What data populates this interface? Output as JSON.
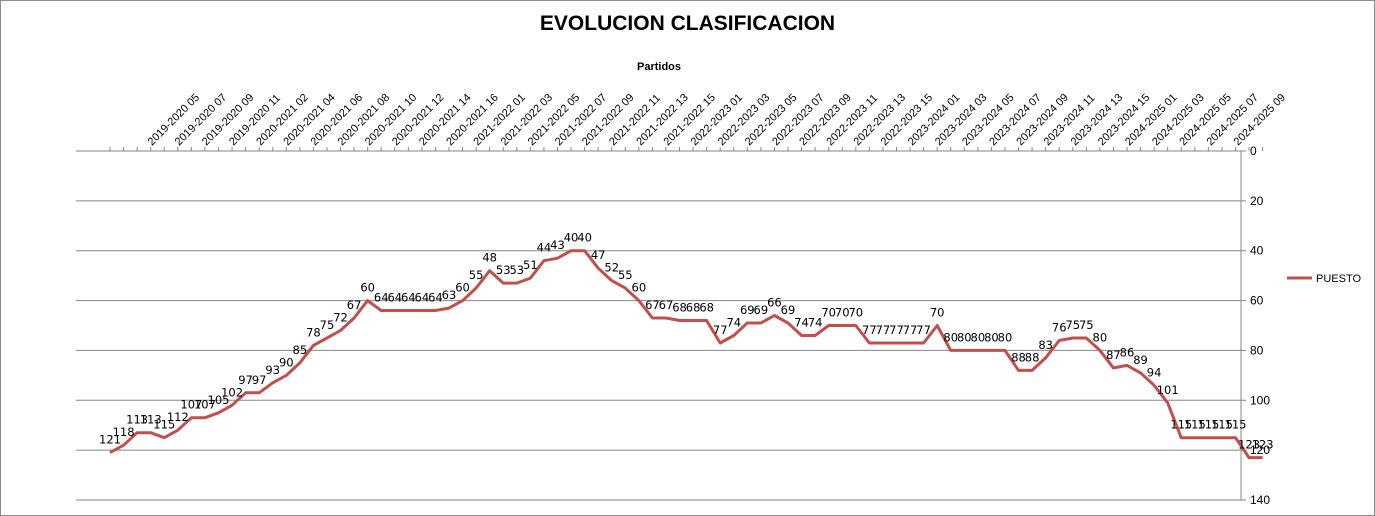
{
  "chart_data": {
    "type": "line",
    "title": "EVOLUCION CLASIFICACION",
    "xlabel": "Partidos",
    "ylabel": "",
    "y_reversed": true,
    "ylim": [
      0,
      140
    ],
    "yticks": [
      0,
      20,
      40,
      60,
      80,
      100,
      120,
      140
    ],
    "grid": "horizontal",
    "legend": "right",
    "x_tick_labels": [
      "2019-2020 05",
      "2019-2020 07",
      "2019-2020 09",
      "2019-2020 11",
      "2020-2021 02",
      "2020-2021 04",
      "2020-2021 06",
      "2020-2021 08",
      "2020-2021 10",
      "2020-2021 12",
      "2020-2021 14",
      "2020-2021 16",
      "2021-2022 01",
      "2021-2022 03",
      "2021-2022 05",
      "2021-2022 07",
      "2021-2022 09",
      "2021-2022 11",
      "2021-2022 13",
      "2021-2022 15",
      "2022-2023 01",
      "2022-2023 03",
      "2022-2023 05",
      "2022-2023 07",
      "2022-2023 09",
      "2022-2023 11",
      "2022-2023 13",
      "2022-2023 15",
      "2023-2024 01",
      "2023-2024 03",
      "2023-2024 05",
      "2023-2024 07",
      "2023-2024 09",
      "2023-2024 11",
      "2023-2024 13",
      "2023-2024 15",
      "2024-2025 01",
      "2024-2025 03",
      "2024-2025 05",
      "2024-2025 07",
      "2024-2025 09"
    ],
    "series": [
      {
        "name": "PUESTO",
        "color": "#c0504d",
        "values": [
          121,
          118,
          113,
          113,
          115,
          112,
          107,
          107,
          105,
          102,
          97,
          97,
          93,
          90,
          85,
          78,
          75,
          72,
          67,
          60,
          64,
          64,
          64,
          64,
          64,
          63,
          60,
          55,
          48,
          53,
          53,
          51,
          44,
          43,
          40,
          40,
          47,
          52,
          55,
          60,
          67,
          67,
          68,
          68,
          68,
          77,
          74,
          69,
          69,
          66,
          69,
          74,
          74,
          70,
          70,
          70,
          77,
          77,
          77,
          77,
          77,
          70,
          80,
          80,
          80,
          80,
          80,
          88,
          88,
          83,
          76,
          75,
          75,
          80,
          87,
          86,
          89,
          94,
          101,
          115,
          115,
          115,
          115,
          115,
          123,
          123
        ]
      }
    ]
  }
}
